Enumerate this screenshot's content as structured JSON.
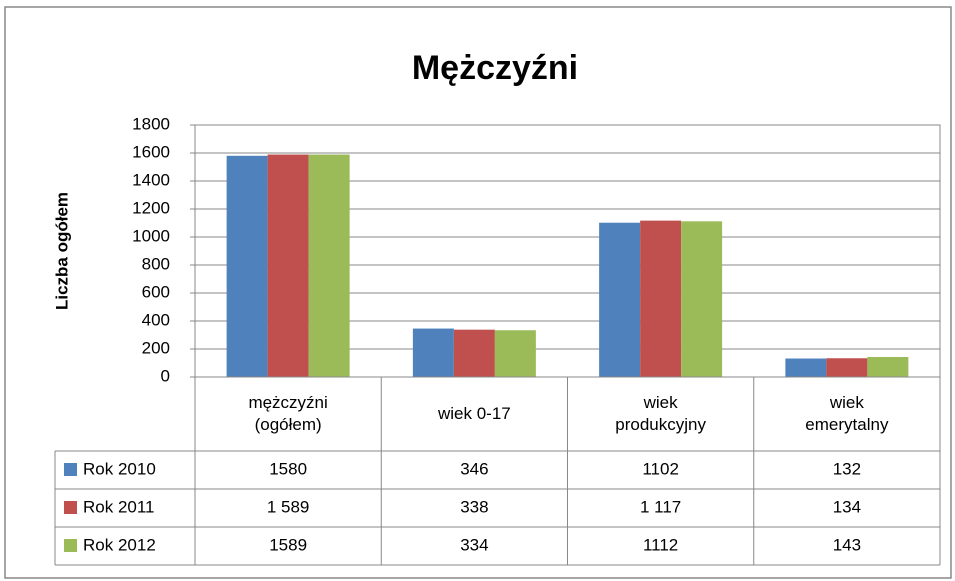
{
  "chart_data": {
    "type": "bar",
    "title": "Mężczyźni",
    "y_label": "Liczba ogółem",
    "categories": [
      "mężczyźni (ogółem)",
      "wiek 0-17",
      "wiek produkcyjny",
      "wiek emerytalny"
    ],
    "series": [
      {
        "name": "Rok 2010",
        "color": "#4f81bd",
        "values": [
          1580,
          346,
          1102,
          132
        ]
      },
      {
        "name": "Rok 2011",
        "color": "#c0504d",
        "values": [
          1589,
          338,
          1117,
          134
        ],
        "value_labels": [
          "1 589",
          "338",
          "1 117",
          "134"
        ]
      },
      {
        "name": "Rok 2012",
        "color": "#9bbb59",
        "values": [
          1589,
          334,
          1112,
          143
        ]
      }
    ],
    "ylim": [
      0,
      1800
    ],
    "yticks": [
      0,
      200,
      400,
      600,
      800,
      1000,
      1200,
      1400,
      1600,
      1800
    ],
    "grid": true,
    "data_table": true
  }
}
